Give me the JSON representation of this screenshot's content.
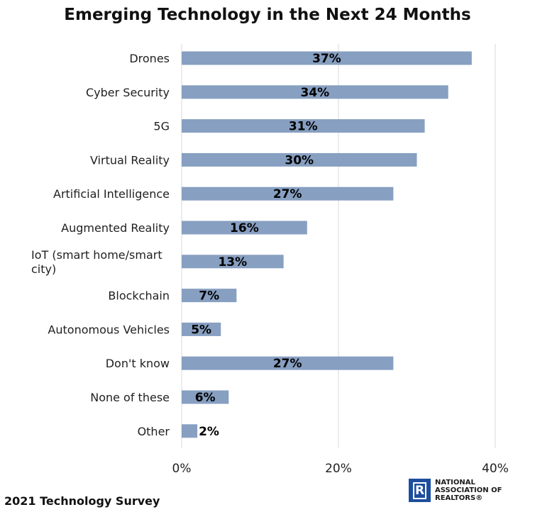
{
  "chart_data": {
    "type": "bar",
    "orientation": "horizontal",
    "title": "Emerging Technology in the Next 24 Months",
    "categories": [
      "Drones",
      "Cyber Security",
      "5G",
      "Virtual Reality",
      "Artificial Intelligence",
      "Augmented Reality",
      "IoT (smart home/smart city)",
      "Blockchain",
      "Autonomous Vehicles",
      "Don't know",
      "None of these",
      "Other"
    ],
    "values": [
      37,
      34,
      31,
      30,
      27,
      16,
      13,
      7,
      5,
      27,
      6,
      2
    ],
    "data_labels": [
      "37%",
      "34%",
      "31%",
      "30%",
      "27%",
      "16%",
      "13%",
      "7%",
      "5%",
      "27%",
      "6%",
      "2%"
    ],
    "xlim": [
      0,
      40
    ],
    "xticks": [
      0,
      20,
      40
    ],
    "xtick_labels": [
      "0%",
      "20%",
      "40%"
    ],
    "grid": "vertical",
    "bar_color": "#879fc1",
    "xlabel": "",
    "ylabel": ""
  },
  "footer": {
    "source": "2021 Technology Survey"
  },
  "logo": {
    "line1": "NATIONAL",
    "line2": "ASSOCIATION OF",
    "line3": "REALTORS®",
    "mark": "R",
    "color": "#1d4e9e"
  }
}
